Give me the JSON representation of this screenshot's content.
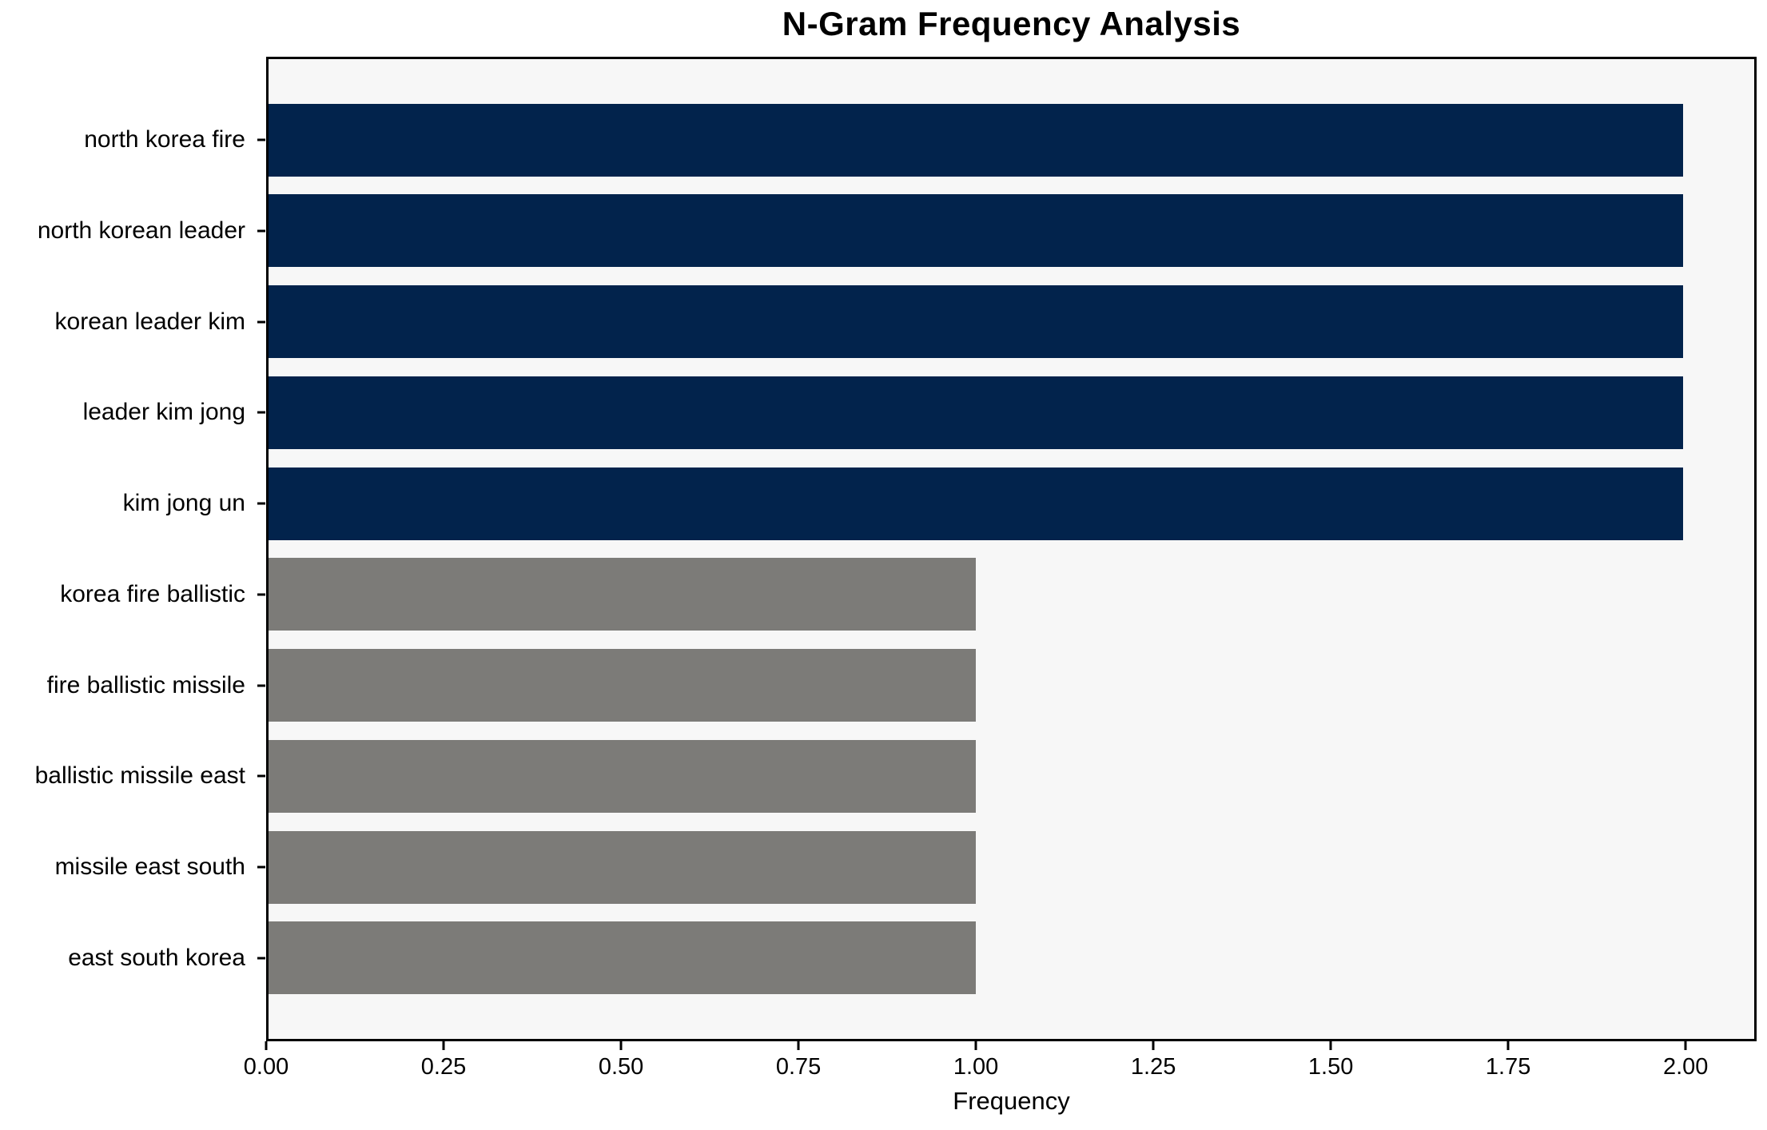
{
  "chart_data": {
    "type": "bar",
    "orientation": "horizontal",
    "title": "N-Gram Frequency Analysis",
    "xlabel": "Frequency",
    "ylabel": "",
    "categories": [
      "north korea fire",
      "north korean leader",
      "korean leader kim",
      "leader kim jong",
      "kim jong un",
      "korea fire ballistic",
      "fire ballistic missile",
      "ballistic missile east",
      "missile east south",
      "east south korea"
    ],
    "values": [
      2,
      2,
      2,
      2,
      2,
      1,
      1,
      1,
      1,
      1
    ],
    "bar_colors": [
      "#02234c",
      "#02234c",
      "#02234c",
      "#02234c",
      "#02234c",
      "#7c7b78",
      "#7c7b78",
      "#7c7b78",
      "#7c7b78",
      "#7c7b78"
    ],
    "xlim": [
      0,
      2.1
    ],
    "xtick_values": [
      0,
      0.25,
      0.5,
      0.75,
      1.0,
      1.25,
      1.5,
      1.75,
      2.0
    ],
    "xtick_labels": [
      "0.00",
      "0.25",
      "0.50",
      "0.75",
      "1.00",
      "1.25",
      "1.50",
      "1.75",
      "2.00"
    ],
    "grid": false,
    "legend_position": "none",
    "bar_height_fraction": 0.8,
    "colors": {
      "bar_primary": "#02234c",
      "bar_secondary": "#7c7b78",
      "plot_background": "#f7f7f7",
      "figure_background": "#ffffff",
      "axis": "#000000",
      "text": "#000000"
    }
  }
}
